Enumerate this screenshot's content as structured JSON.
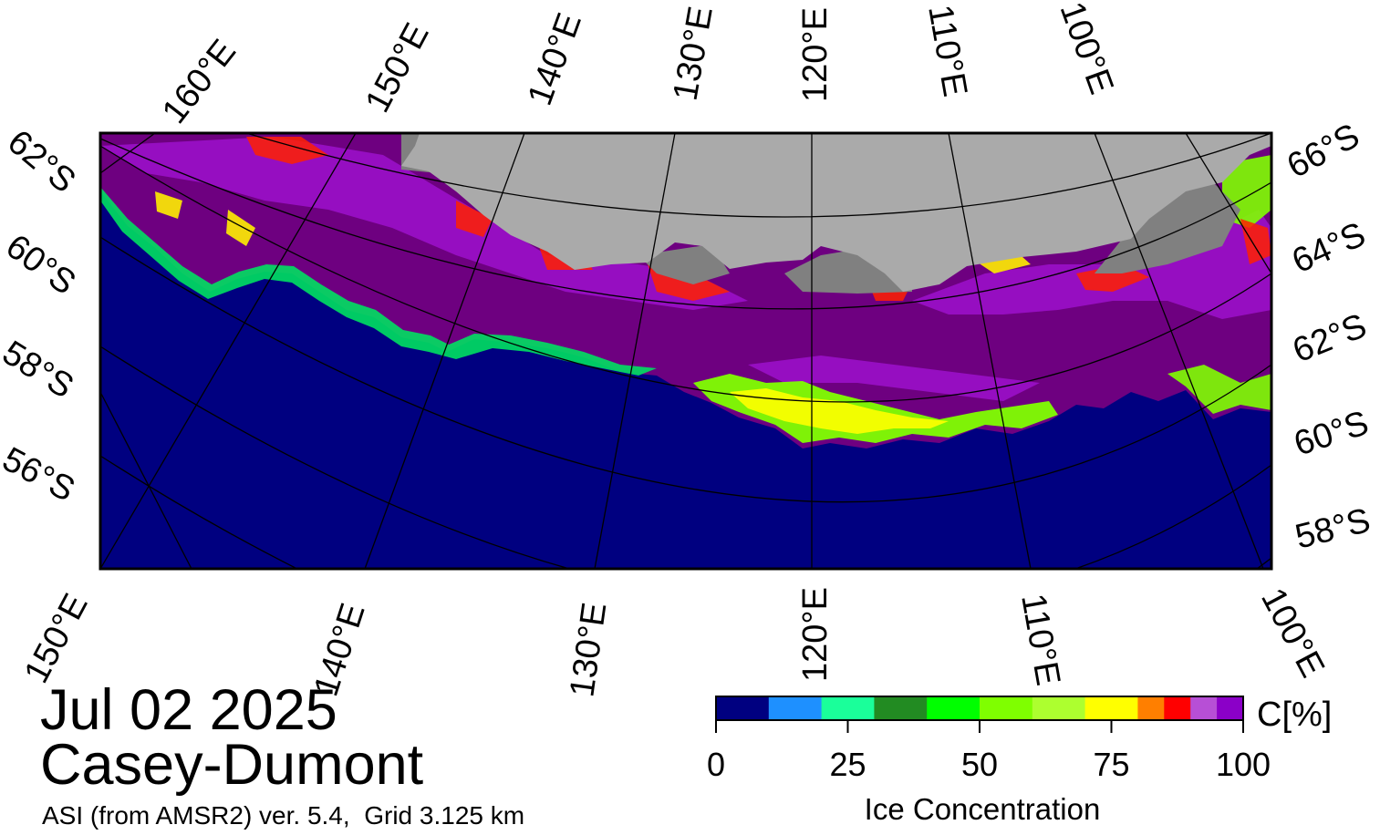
{
  "title": {
    "date": "Jul 02 2025",
    "region": "Casey-Dumont",
    "product": "ASI (from AMSR2) ver. 5.4,  Grid 3.125 km"
  },
  "map": {
    "top_lon_labels": [
      "160°E",
      "150°E",
      "140°E",
      "130°E",
      "120°E",
      "110°E",
      "100°E"
    ],
    "bottom_lon_labels": [
      "150°E",
      "140°E",
      "130°E",
      "120°E",
      "110°E",
      "100°E"
    ],
    "left_lat_labels": [
      "62°S",
      "60°S",
      "58°S",
      "56°S"
    ],
    "right_lat_labels": [
      "66°S",
      "64°S",
      "62°S",
      "60°S",
      "58°S"
    ],
    "colors": {
      "ocean": "#000080",
      "land": "#aaaaaa",
      "shelf_ice": "#808080",
      "frame": "#000000",
      "grid": "#000000"
    }
  },
  "colorbar": {
    "title": "Ice Concentration",
    "unit": "C[%]",
    "ticks": [
      "0",
      "25",
      "50",
      "75",
      "100"
    ],
    "tick_values": [
      0,
      25,
      50,
      75,
      100
    ],
    "range": [
      0,
      100
    ],
    "bins": [
      {
        "from": 0,
        "to": 10,
        "color": "#000080"
      },
      {
        "from": 10,
        "to": 20,
        "color": "#1e90ff"
      },
      {
        "from": 20,
        "to": 30,
        "color": "#1aff9a"
      },
      {
        "from": 30,
        "to": 40,
        "color": "#228b22"
      },
      {
        "from": 40,
        "to": 50,
        "color": "#00ff00"
      },
      {
        "from": 50,
        "to": 60,
        "color": "#7fff00"
      },
      {
        "from": 60,
        "to": 70,
        "color": "#adff2f"
      },
      {
        "from": 70,
        "to": 80,
        "color": "#ffff00"
      },
      {
        "from": 80,
        "to": 85,
        "color": "#ff7f00"
      },
      {
        "from": 85,
        "to": 90,
        "color": "#ff0000"
      },
      {
        "from": 90,
        "to": 95,
        "color": "#b74fd6"
      },
      {
        "from": 95,
        "to": 100,
        "color": "#8b00c8"
      }
    ]
  }
}
